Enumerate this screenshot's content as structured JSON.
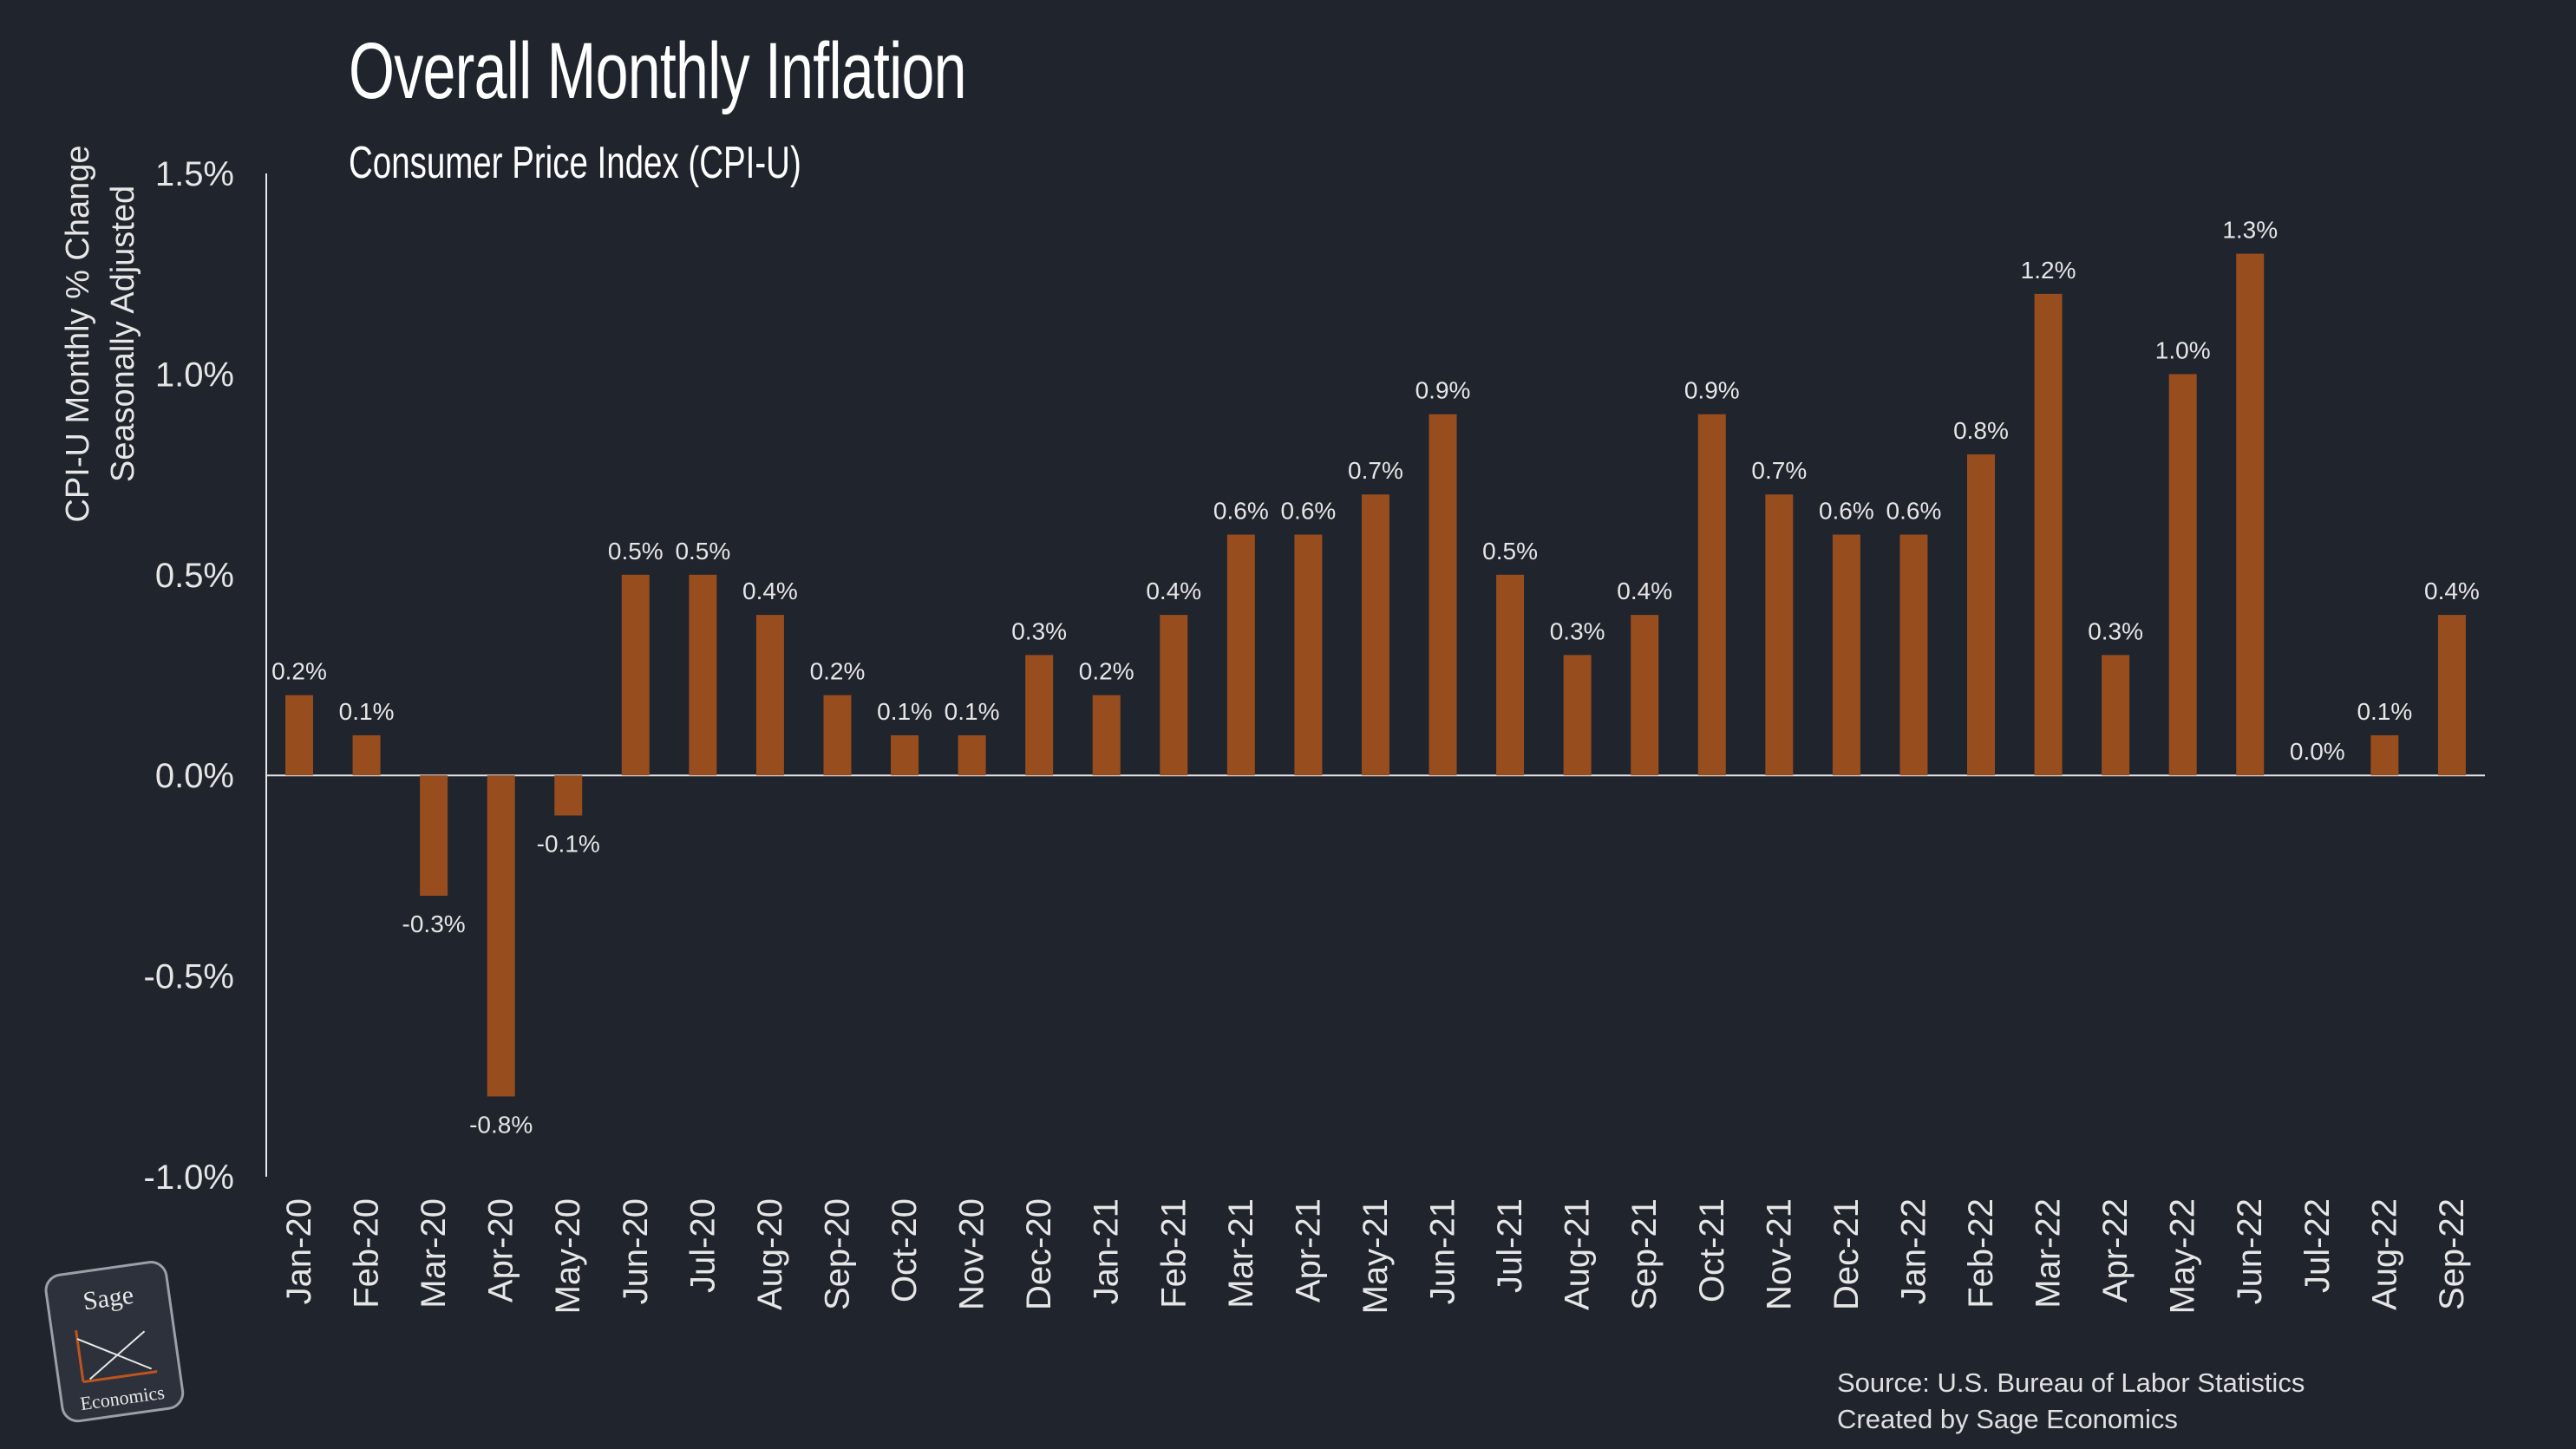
{
  "title": "Overall Monthly Inflation",
  "subtitle": "Consumer Price Index (CPI-U)",
  "source_lines": [
    "Source: U.S. Bureau of Labor Statistics",
    "Created by Sage Economics"
  ],
  "logo": {
    "line1": "Sage",
    "line2": "Economics"
  },
  "colors": {
    "background": "#20242d",
    "bar": "#974d1e",
    "text": "#e6e6e6",
    "axis": "#e6e6e6",
    "logo_accent": "#c0541e"
  },
  "chart_data": {
    "type": "bar",
    "ylabel": [
      "CPI-U Monthly % Change",
      "Seasonally Adjusted"
    ],
    "xlabel": "",
    "ylim": [
      -1.0,
      1.5
    ],
    "yticks": [
      -1.0,
      -0.5,
      0.0,
      0.5,
      1.0,
      1.5
    ],
    "ytick_labels": [
      "-1.0%",
      "-0.5%",
      "0.0%",
      "0.5%",
      "1.0%",
      "1.5%"
    ],
    "grid": false,
    "categories": [
      "Jan-20",
      "Feb-20",
      "Mar-20",
      "Apr-20",
      "May-20",
      "Jun-20",
      "Jul-20",
      "Aug-20",
      "Sep-20",
      "Oct-20",
      "Nov-20",
      "Dec-20",
      "Jan-21",
      "Feb-21",
      "Mar-21",
      "Apr-21",
      "May-21",
      "Jun-21",
      "Jul-21",
      "Aug-21",
      "Sep-21",
      "Oct-21",
      "Nov-21",
      "Dec-21",
      "Jan-22",
      "Feb-22",
      "Mar-22",
      "Apr-22",
      "May-22",
      "Jun-22",
      "Jul-22",
      "Aug-22",
      "Sep-22"
    ],
    "values": [
      0.2,
      0.1,
      -0.3,
      -0.8,
      -0.1,
      0.5,
      0.5,
      0.4,
      0.2,
      0.1,
      0.1,
      0.3,
      0.2,
      0.4,
      0.6,
      0.6,
      0.7,
      0.9,
      0.5,
      0.3,
      0.4,
      0.9,
      0.7,
      0.6,
      0.6,
      0.8,
      1.2,
      0.3,
      1.0,
      1.3,
      0.0,
      0.1,
      0.4
    ],
    "data_labels": [
      "0.2%",
      "0.1%",
      "-0.3%",
      "-0.8%",
      "-0.1%",
      "0.5%",
      "0.5%",
      "0.4%",
      "0.2%",
      "0.1%",
      "0.1%",
      "0.3%",
      "0.2%",
      "0.4%",
      "0.6%",
      "0.6%",
      "0.7%",
      "0.9%",
      "0.5%",
      "0.3%",
      "0.4%",
      "0.9%",
      "0.7%",
      "0.6%",
      "0.6%",
      "0.8%",
      "1.2%",
      "0.3%",
      "1.0%",
      "1.3%",
      "0.0%",
      "0.1%",
      "0.4%"
    ]
  }
}
